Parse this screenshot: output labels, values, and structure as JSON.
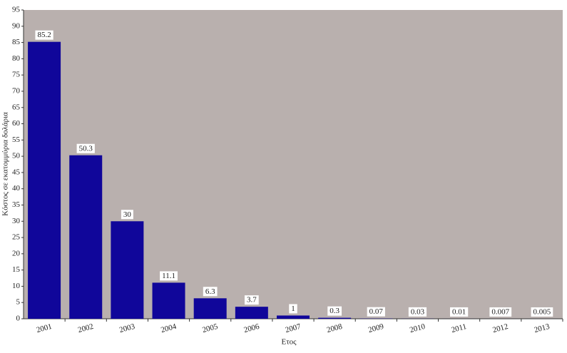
{
  "chart_data": {
    "type": "bar",
    "y_label": "Κόστος σε εκατομμύρια δολάρια",
    "x_label": "Ετος",
    "categories": [
      "2001",
      "2002",
      "2003",
      "2004",
      "2005",
      "2006",
      "2007",
      "2008",
      "2009",
      "2010",
      "2011",
      "2012",
      "2013"
    ],
    "values": [
      85.2,
      50.3,
      30,
      11.1,
      6.3,
      3.7,
      1,
      0.3,
      0.07,
      0.03,
      0.01,
      0.007,
      0.005
    ],
    "color": "#10069a",
    "background": "#b9b0ae",
    "ylim": [
      0,
      95
    ],
    "yticks": [
      0,
      5,
      10,
      15,
      20,
      25,
      30,
      35,
      40,
      45,
      50,
      55,
      60,
      65,
      70,
      75,
      80,
      85,
      90,
      95
    ]
  }
}
